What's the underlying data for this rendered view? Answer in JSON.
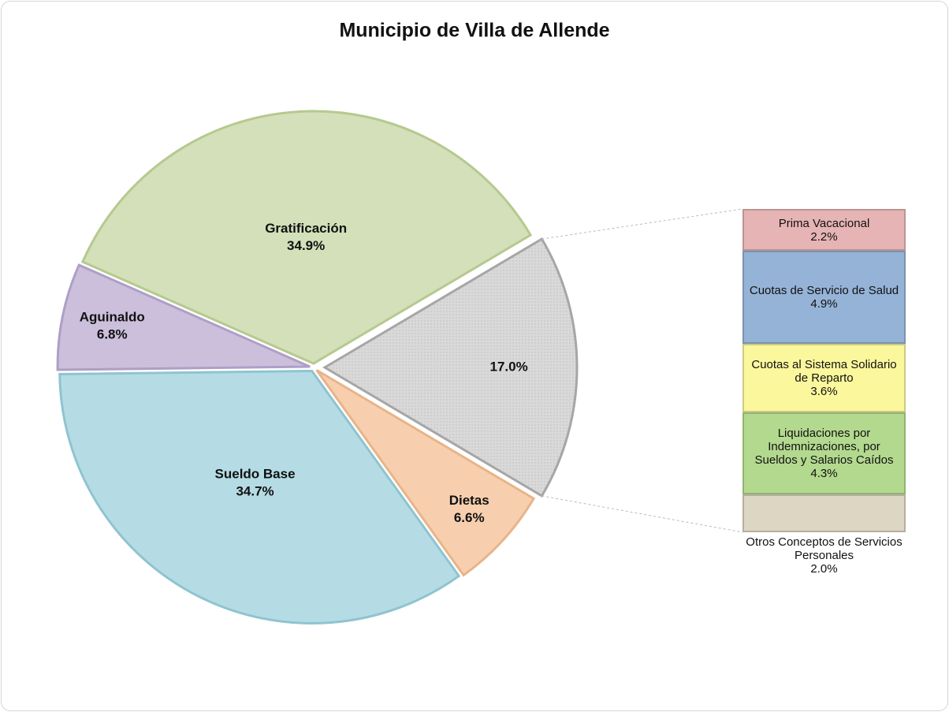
{
  "chart_data": {
    "type": "pie",
    "title": "Municipio de Villa de Allende",
    "categories": [
      "Gratificación",
      null,
      "Dietas",
      "Sueldo Base",
      "Aguinaldo"
    ],
    "values": [
      34.9,
      17.0,
      6.6,
      34.7,
      6.8
    ],
    "value_labels": [
      "34.9%",
      "17.0%",
      "6.6%",
      "34.7%",
      "6.8%"
    ],
    "colors": [
      "#d3e0b9",
      "#d9d9d9",
      "#f7cfae",
      "#b5dce4",
      "#cbbfdc"
    ],
    "breakdown": {
      "categories": [
        "Prima Vacacional",
        "Cuotas de Servicio de Salud",
        "Cuotas al Sistema Solidario de Reparto",
        "Liquidaciones por Indemnizaciones, por Sueldos y Salarios Caídos",
        "Otros Conceptos de Servicios Personales"
      ],
      "values": [
        2.2,
        4.9,
        3.6,
        4.3,
        2.0
      ],
      "value_labels": [
        "2.2%",
        "4.9%",
        "3.6%",
        "4.3%",
        "2.0%"
      ],
      "colors": [
        "#e6b4b4",
        "#95b3d7",
        "#fbf79c",
        "#b3d98f",
        "#ddd6c3"
      ]
    }
  }
}
